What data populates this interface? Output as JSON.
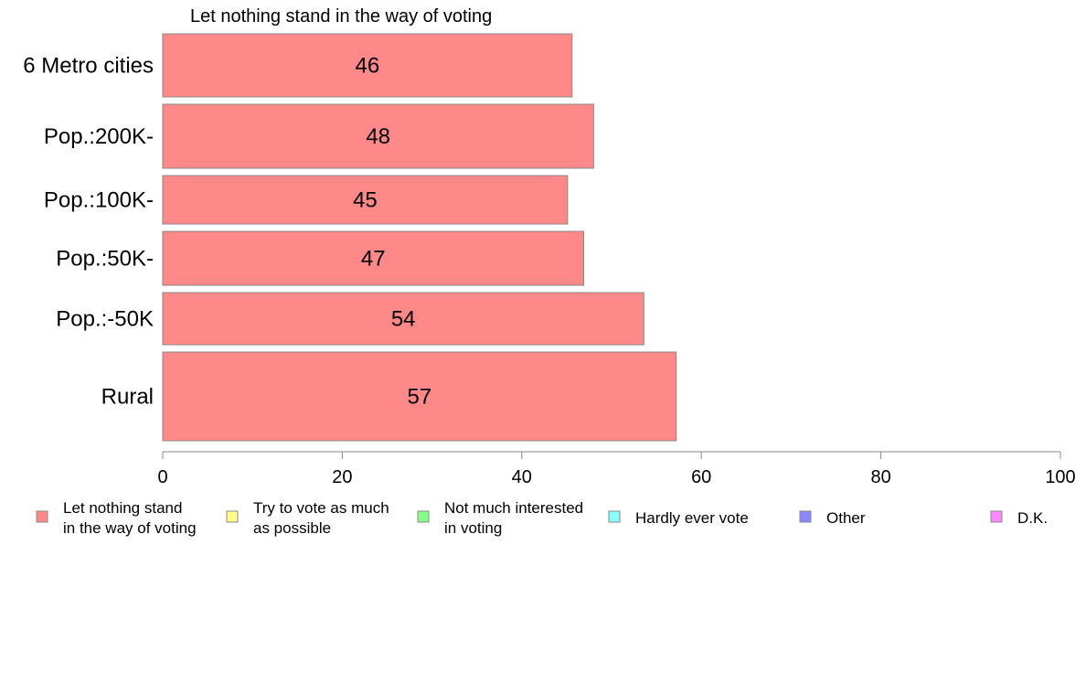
{
  "chart_data": {
    "type": "bar",
    "orientation": "horizontal",
    "title": "Let nothing stand in the way of voting",
    "categories": [
      "6 Metro cities",
      "Pop.:200K-",
      "Pop.:100K-",
      "Pop.:50K-",
      "Pop.:-50K",
      "Rural"
    ],
    "series": [
      {
        "name": "Let nothing stand in the way of voting",
        "values": [
          45.6,
          48.0,
          45.1,
          46.9,
          53.6,
          57.2
        ],
        "labels": [
          "46",
          "48",
          "45",
          "47",
          "54",
          "57"
        ],
        "color": "#ff8888"
      }
    ],
    "xlim": [
      0,
      100
    ],
    "xticks": [
      "0",
      "20",
      "40",
      "60",
      "80",
      "100"
    ],
    "grid": false,
    "legend": {
      "placement": "bottom",
      "items": [
        {
          "lines": [
            "Let nothing stand",
            "in the way of voting"
          ],
          "color": "#ff8888"
        },
        {
          "lines": [
            "Try to vote as much",
            "as possible"
          ],
          "color": "#ffff88"
        },
        {
          "lines": [
            "Not much interested",
            "in voting"
          ],
          "color": "#88ff88"
        },
        {
          "lines": [
            "Hardly ever vote"
          ],
          "color": "#88ffff"
        },
        {
          "lines": [
            "Other"
          ],
          "color": "#8888ff"
        },
        {
          "lines": [
            "D.K."
          ],
          "color": "#ff88ff"
        }
      ]
    }
  }
}
